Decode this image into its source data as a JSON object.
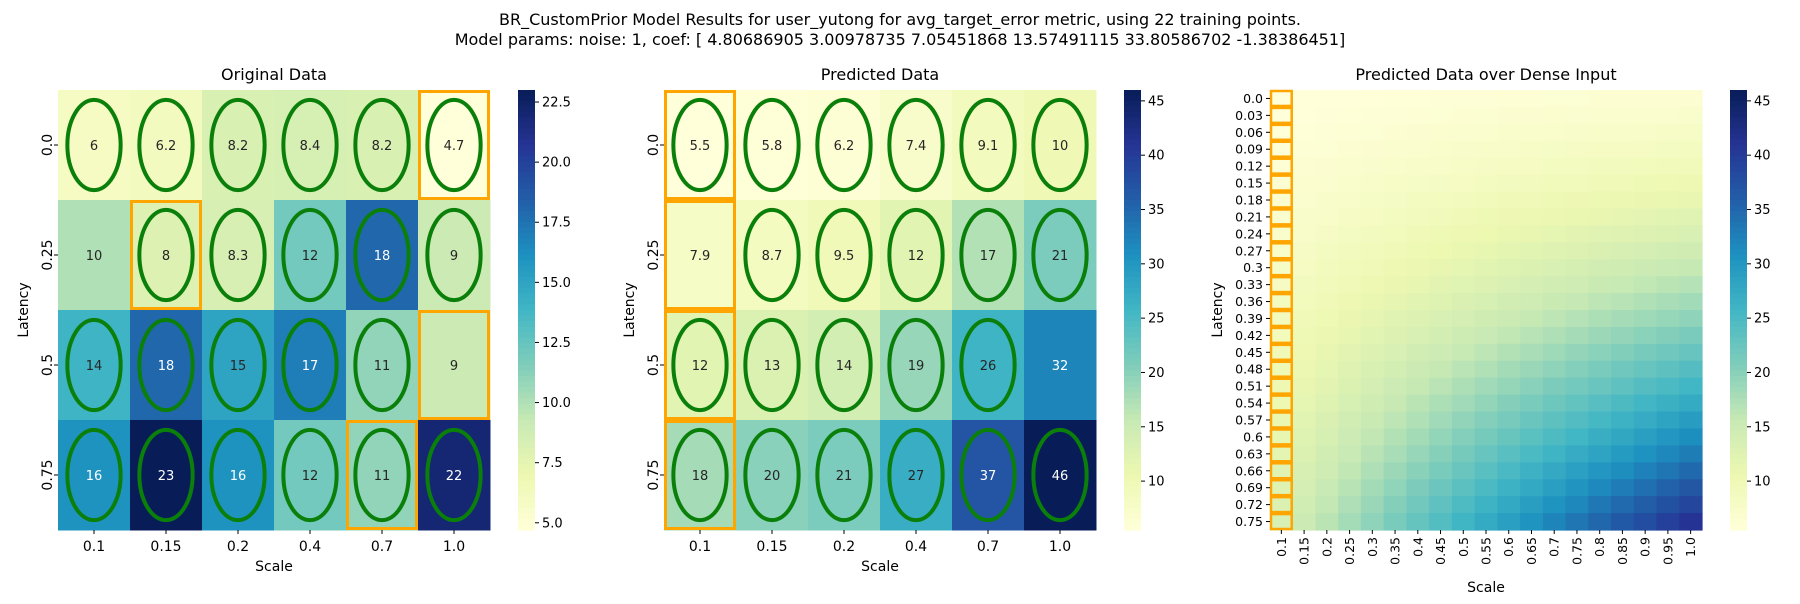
{
  "suptitle_line1": "BR_CustomPrior Model Results for user_yutong for avg_target_error metric, using 22 training points.",
  "suptitle_line2": "Model params: noise: 1, coef: [ 4.80686905  3.00978735  7.05451868 13.57491115 33.80586702 -1.38386451]",
  "chart_data": [
    {
      "type": "heatmap",
      "title": "Original Data",
      "xlabel": "Scale",
      "ylabel": "Latency",
      "x": [
        "0.1",
        "0.15",
        "0.2",
        "0.4",
        "0.7",
        "1.0"
      ],
      "y": [
        "0.0",
        "0.25",
        "0.5",
        "0.75"
      ],
      "values": [
        [
          6.0,
          6.2,
          8.2,
          8.4,
          8.2,
          4.7
        ],
        [
          10.0,
          8.0,
          8.3,
          12.0,
          18.0,
          9.0
        ],
        [
          14.0,
          18.0,
          15.0,
          17.0,
          11.0,
          9.0
        ],
        [
          16.0,
          23.0,
          16.0,
          12.0,
          11.0,
          22.0
        ]
      ],
      "labels": [
        [
          "6",
          "6.2",
          "8.2",
          "8.4",
          "8.2",
          "4.7"
        ],
        [
          "10",
          "8",
          "8.3",
          "12",
          "18",
          "9"
        ],
        [
          "14",
          "18",
          "15",
          "17",
          "11",
          "9"
        ],
        [
          "16",
          "23",
          "16",
          "12",
          "11",
          "22"
        ]
      ],
      "ellipses": [
        [
          1,
          1,
          1,
          1,
          1,
          1
        ],
        [
          0,
          1,
          1,
          1,
          1,
          1
        ],
        [
          1,
          1,
          1,
          1,
          1,
          0
        ],
        [
          1,
          1,
          1,
          1,
          1,
          1
        ]
      ],
      "highlights": [
        [
          0,
          5
        ],
        [
          1,
          1
        ],
        [
          2,
          5
        ],
        [
          3,
          4
        ]
      ],
      "colorbar": {
        "min": 4.7,
        "max": 23,
        "ticks": [
          "5.0",
          "7.5",
          "10.0",
          "12.5",
          "15.0",
          "17.5",
          "20.0",
          "22.5"
        ]
      }
    },
    {
      "type": "heatmap",
      "title": "Predicted Data",
      "xlabel": "Scale",
      "ylabel": "Latency",
      "x": [
        "0.1",
        "0.15",
        "0.2",
        "0.4",
        "0.7",
        "1.0"
      ],
      "y": [
        "0.0",
        "0.25",
        "0.5",
        "0.75"
      ],
      "values": [
        [
          5.5,
          5.8,
          6.2,
          7.4,
          9.1,
          10.0
        ],
        [
          7.9,
          8.7,
          9.5,
          12.0,
          17.0,
          21.0
        ],
        [
          12.0,
          13.0,
          14.0,
          19.0,
          26.0,
          32.0
        ],
        [
          18.0,
          20.0,
          21.0,
          27.0,
          37.0,
          46.0
        ]
      ],
      "labels": [
        [
          "5.5",
          "5.8",
          "6.2",
          "7.4",
          "9.1",
          "10"
        ],
        [
          "7.9",
          "8.7",
          "9.5",
          "12",
          "17",
          "21"
        ],
        [
          "12",
          "13",
          "14",
          "19",
          "26",
          "32"
        ],
        [
          "18",
          "20",
          "21",
          "27",
          "37",
          "46"
        ]
      ],
      "ellipses": [
        [
          1,
          1,
          1,
          1,
          1,
          1
        ],
        [
          0,
          1,
          1,
          1,
          1,
          1
        ],
        [
          1,
          1,
          1,
          1,
          1,
          0
        ],
        [
          1,
          1,
          1,
          1,
          1,
          1
        ]
      ],
      "highlights": [
        [
          0,
          0
        ],
        [
          1,
          0
        ],
        [
          2,
          0
        ],
        [
          3,
          0
        ]
      ],
      "colorbar": {
        "min": 5.5,
        "max": 46,
        "ticks": [
          "10",
          "15",
          "20",
          "25",
          "30",
          "35",
          "40",
          "45"
        ]
      }
    },
    {
      "type": "heatmap",
      "title": "Predicted Data over Dense Input",
      "xlabel": "Scale",
      "ylabel": "Latency",
      "x": [
        "0.1",
        "0.15",
        "0.2",
        "0.25",
        "0.3",
        "0.35",
        "0.4",
        "0.45",
        "0.5",
        "0.55",
        "0.6",
        "0.65",
        "0.7",
        "0.75",
        "0.8",
        "0.85",
        "0.9",
        "0.95",
        "1.0"
      ],
      "y": [
        "0.0",
        "0.03",
        "0.06",
        "0.09",
        "0.12",
        "0.15",
        "0.18",
        "0.21",
        "0.24",
        "0.27",
        "0.3",
        "0.33",
        "0.36",
        "0.39",
        "0.42",
        "0.45",
        "0.48",
        "0.51",
        "0.54",
        "0.57",
        "0.6",
        "0.63",
        "0.66",
        "0.69",
        "0.72",
        "0.75"
      ],
      "model": {
        "coef": [
          4.80686905,
          3.00978735,
          7.05451868,
          13.57491115,
          33.80586702,
          -1.38386451
        ]
      },
      "highlight_column": "0.1",
      "colorbar": {
        "min": 5.5,
        "max": 46,
        "ticks": [
          "10",
          "15",
          "20",
          "25",
          "30",
          "35",
          "40",
          "45"
        ]
      }
    }
  ]
}
